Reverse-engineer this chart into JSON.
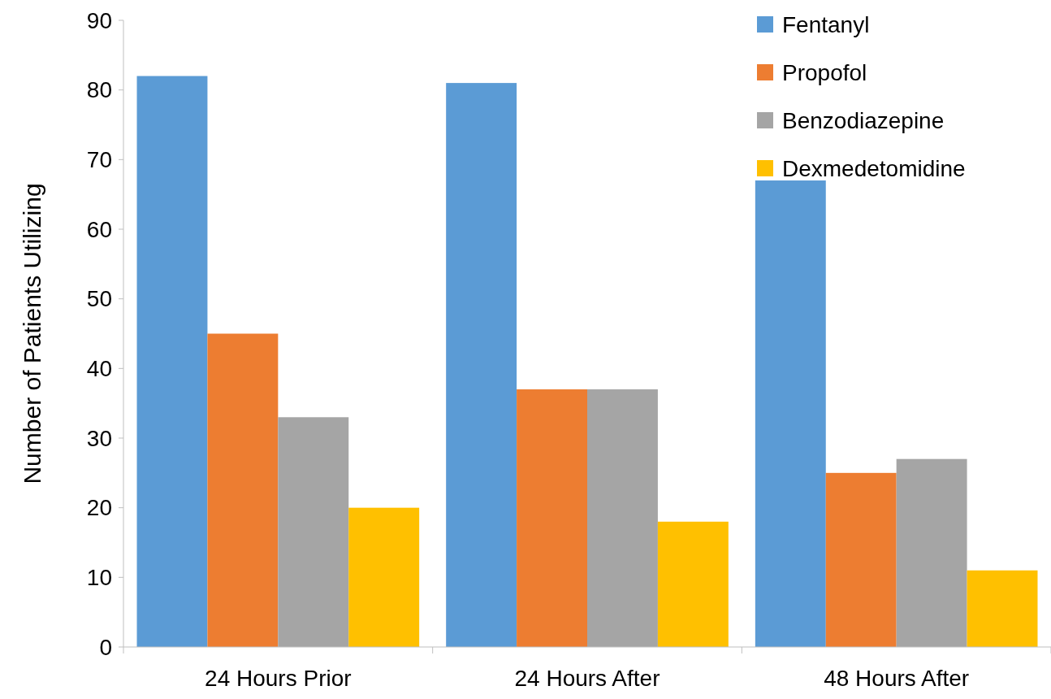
{
  "chart_data": {
    "type": "bar",
    "ylabel": "Number of Patients Utilizing",
    "categories": [
      "24 Hours Prior",
      "24 Hours After",
      "48 Hours After"
    ],
    "series": [
      {
        "name": "Fentanyl",
        "color": "#5b9bd5",
        "values": [
          82,
          81,
          67
        ]
      },
      {
        "name": "Propofol",
        "color": "#ed7d31",
        "values": [
          45,
          37,
          25
        ]
      },
      {
        "name": "Benzodiazepine",
        "color": "#a5a5a5",
        "values": [
          33,
          37,
          27
        ]
      },
      {
        "name": "Dexmedetomidine",
        "color": "#ffc000",
        "values": [
          20,
          18,
          11
        ]
      }
    ],
    "ylim": [
      0,
      90
    ],
    "yticks": [
      0,
      10,
      20,
      30,
      40,
      50,
      60,
      70,
      80,
      90
    ],
    "grid": false,
    "legend": "top right"
  }
}
